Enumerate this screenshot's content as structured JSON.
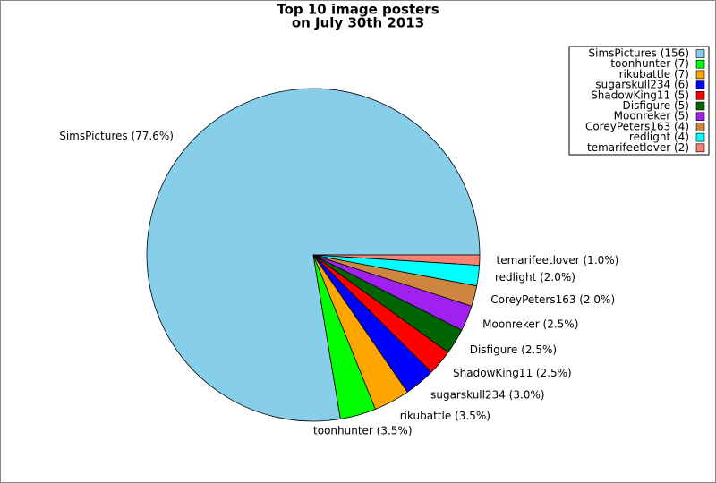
{
  "chart_data": {
    "type": "pie",
    "title": [
      "Top 10 image posters",
      "on July 30th 2013"
    ],
    "categories": [
      "SimsPictures (156)",
      "toonhunter (7)",
      "rikubattle (7)",
      "sugarskull234 (6)",
      "ShadowKing11 (5)",
      "Disfigure (5)",
      "Moonreker (5)",
      "CoreyPeters163 (4)",
      "redlight (4)",
      "temarifeetlover (2)"
    ],
    "values": [
      156,
      7,
      7,
      6,
      5,
      5,
      5,
      4,
      4,
      2
    ],
    "slice_labels": [
      "SimsPictures (77.6%)",
      "toonhunter (3.5%)",
      "rikubattle (3.5%)",
      "sugarskull234 (3.0%)",
      "ShadowKing11 (2.5%)",
      "Disfigure (2.5%)",
      "Moonreker (2.5%)",
      "CoreyPeters163 (2.0%)",
      "redlight (2.0%)",
      "temarifeetlover (1.0%)"
    ],
    "colors": [
      "#87ceeb",
      "#00ff00",
      "#ffa500",
      "#0000ff",
      "#ff0000",
      "#006400",
      "#a020f0",
      "#cd853f",
      "#00ffff",
      "#fa8072"
    ],
    "legend": "upper right"
  }
}
